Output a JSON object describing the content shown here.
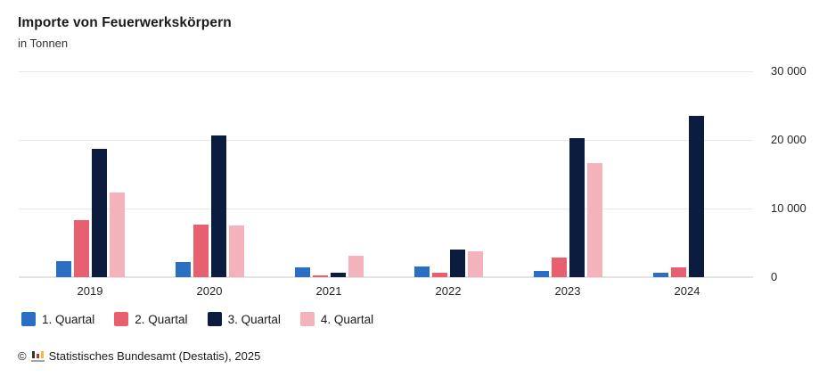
{
  "header": {
    "title": "Importe von Feuerwerkskörpern",
    "subtitle": "in Tonnen"
  },
  "chart_data": {
    "type": "bar",
    "title": "Importe von Feuerwerkskörpern",
    "unit_label": "in Tonnen",
    "categories": [
      "2019",
      "2020",
      "2021",
      "2022",
      "2023",
      "2024"
    ],
    "series": [
      {
        "name": "1. Quartal",
        "color": "#2b6fc4",
        "values": [
          2400,
          2200,
          1400,
          1600,
          900,
          700
        ]
      },
      {
        "name": "2. Quartal",
        "color": "#e8606f",
        "values": [
          8300,
          7600,
          300,
          650,
          2800,
          1450
        ]
      },
      {
        "name": "3. Quartal",
        "color": "#0b1c3f",
        "values": [
          18700,
          20700,
          600,
          4000,
          20300,
          23500
        ]
      },
      {
        "name": "4. Quartal",
        "color": "#f4b2ba",
        "values": [
          12400,
          7500,
          3100,
          3800,
          16600,
          null
        ]
      }
    ],
    "ylim": [
      0,
      30000
    ],
    "yticks": [
      {
        "value": 0,
        "label": "0"
      },
      {
        "value": 10000,
        "label": "10 000"
      },
      {
        "value": 20000,
        "label": "20 000"
      },
      {
        "value": 30000,
        "label": "30 000"
      }
    ],
    "grid": true,
    "legend_position": "bottom"
  },
  "footer": {
    "copyright_symbol": "©",
    "source_text": "Statistisches Bundesamt (Destatis), 2025"
  }
}
